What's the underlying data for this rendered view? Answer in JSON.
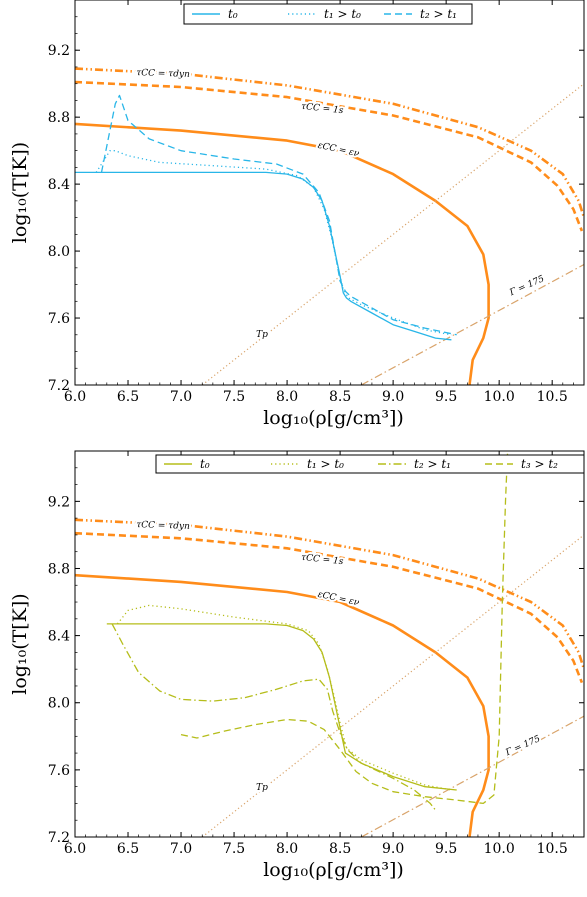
{
  "chart_data": [
    {
      "type": "line",
      "xlabel": "log₁₀(ρ[g/cm³])",
      "ylabel": "log₁₀(T[K])",
      "xlim": [
        6.0,
        10.8
      ],
      "ylim": [
        7.2,
        9.5
      ],
      "xticks": [
        "6.0",
        "6.5",
        "7.0",
        "7.5",
        "8.0",
        "8.5",
        "9.0",
        "9.5",
        "10.0",
        "10.5"
      ],
      "yticks": [
        "7.2",
        "7.6",
        "8.0",
        "8.4",
        "8.8",
        "9.2"
      ],
      "legend": {
        "placement": "top-center",
        "labels": [
          "t₀",
          "t₁ > t₀",
          "t₂ > t₁"
        ]
      },
      "colors": {
        "reference": "#ff8c1a",
        "guide": "#d9a46b",
        "series": "#29b6e8"
      },
      "reference_curves": [
        {
          "name": "τCC = τdyn",
          "style": "dash-dot-dot",
          "x": [
            6.0,
            7.0,
            8.0,
            9.0,
            9.8,
            10.3,
            10.6,
            10.75,
            10.8
          ],
          "y": [
            9.09,
            9.06,
            8.99,
            8.88,
            8.74,
            8.6,
            8.46,
            8.3,
            8.2
          ]
        },
        {
          "name": "τCC = 1s",
          "style": "dashed",
          "x": [
            6.0,
            7.0,
            8.0,
            9.0,
            9.8,
            10.3,
            10.55,
            10.7,
            10.78
          ],
          "y": [
            9.01,
            8.98,
            8.92,
            8.81,
            8.68,
            8.53,
            8.39,
            8.25,
            8.12
          ]
        },
        {
          "name": "εCC = εν",
          "style": "solid",
          "x": [
            6.0,
            7.0,
            8.0,
            8.5,
            9.0,
            9.4,
            9.7,
            9.85,
            9.9,
            9.9,
            9.85,
            9.75,
            9.72
          ],
          "y": [
            8.76,
            8.72,
            8.66,
            8.6,
            8.46,
            8.3,
            8.15,
            7.98,
            7.8,
            7.6,
            7.48,
            7.35,
            7.2
          ]
        },
        {
          "name": "Γ = 175",
          "style": "dash-dot",
          "x": [
            8.7,
            10.8
          ],
          "y": [
            7.2,
            7.92
          ]
        },
        {
          "name": "Tp",
          "style": "dotted",
          "x": [
            7.2,
            10.8
          ],
          "y": [
            7.2,
            9.0
          ]
        }
      ],
      "series": [
        {
          "name": "t₀",
          "style": "solid",
          "x": [
            6.0,
            6.6,
            7.0,
            7.5,
            7.8,
            8.0,
            8.15,
            8.25,
            8.33,
            8.4,
            8.45,
            8.5,
            8.53,
            8.56,
            8.6,
            8.8,
            9.0,
            9.2,
            9.4,
            9.55
          ],
          "y": [
            8.47,
            8.47,
            8.47,
            8.47,
            8.47,
            8.46,
            8.43,
            8.38,
            8.3,
            8.15,
            8.0,
            7.85,
            7.75,
            7.72,
            7.7,
            7.63,
            7.56,
            7.52,
            7.48,
            7.47
          ]
        },
        {
          "name": "t₁ > t₀",
          "style": "dotted",
          "x": [
            6.2,
            6.33,
            6.38,
            6.5,
            6.8,
            7.3,
            7.8,
            8.1,
            8.25,
            8.35,
            8.42,
            8.48,
            8.53,
            8.58,
            8.7,
            9.0,
            9.3,
            9.55
          ],
          "y": [
            8.47,
            8.6,
            8.6,
            8.57,
            8.53,
            8.51,
            8.49,
            8.45,
            8.38,
            8.25,
            8.08,
            7.9,
            7.77,
            7.72,
            7.68,
            7.6,
            7.53,
            7.5
          ]
        },
        {
          "name": "t₂ > t₁",
          "style": "dashed",
          "x": [
            6.25,
            6.38,
            6.42,
            6.5,
            6.7,
            7.0,
            7.5,
            7.9,
            8.15,
            8.3,
            8.4,
            8.45,
            8.5,
            8.55,
            8.6,
            8.8,
            9.0,
            9.3,
            9.6
          ],
          "y": [
            8.47,
            8.88,
            8.93,
            8.78,
            8.67,
            8.6,
            8.55,
            8.52,
            8.46,
            8.35,
            8.18,
            8.0,
            7.82,
            7.76,
            7.73,
            7.66,
            7.59,
            7.54,
            7.5
          ]
        }
      ],
      "annotations": [
        "τCC = τdyn",
        "τCC = 1s",
        "εCC = εν",
        "Γ = 175",
        "Tp"
      ]
    },
    {
      "type": "line",
      "xlabel": "log₁₀(ρ[g/cm³])",
      "ylabel": "log₁₀(T[K])",
      "xlim": [
        6.0,
        10.8
      ],
      "ylim": [
        7.2,
        9.5
      ],
      "xticks": [
        "6.0",
        "6.5",
        "7.0",
        "7.5",
        "8.0",
        "8.5",
        "9.0",
        "9.5",
        "10.0",
        "10.5"
      ],
      "yticks": [
        "7.2",
        "7.6",
        "8.0",
        "8.4",
        "8.8",
        "9.2"
      ],
      "legend": {
        "placement": "top-center",
        "labels": [
          "t₀",
          "t₁ > t₀",
          "t₂ > t₁",
          "t₃ > t₂"
        ]
      },
      "colors": {
        "reference": "#ff8c1a",
        "guide": "#d9a46b",
        "series": "#b5bd1a"
      },
      "reference_curves": [
        {
          "name": "τCC = τdyn",
          "style": "dash-dot-dot",
          "x": [
            6.0,
            7.0,
            8.0,
            9.0,
            9.8,
            10.3,
            10.6,
            10.75,
            10.8
          ],
          "y": [
            9.09,
            9.06,
            8.99,
            8.88,
            8.74,
            8.6,
            8.46,
            8.3,
            8.2
          ]
        },
        {
          "name": "τCC = 1s",
          "style": "dashed",
          "x": [
            6.0,
            7.0,
            8.0,
            9.0,
            9.8,
            10.3,
            10.55,
            10.7,
            10.78
          ],
          "y": [
            9.01,
            8.98,
            8.92,
            8.81,
            8.68,
            8.53,
            8.39,
            8.25,
            8.12
          ]
        },
        {
          "name": "εCC = εν",
          "style": "solid",
          "x": [
            6.0,
            7.0,
            8.0,
            8.5,
            9.0,
            9.4,
            9.7,
            9.85,
            9.9,
            9.9,
            9.85,
            9.75,
            9.72
          ],
          "y": [
            8.76,
            8.72,
            8.66,
            8.6,
            8.46,
            8.3,
            8.15,
            7.98,
            7.8,
            7.6,
            7.48,
            7.35,
            7.2
          ]
        },
        {
          "name": "Γ = 175",
          "style": "dash-dot",
          "x": [
            8.7,
            10.8
          ],
          "y": [
            7.2,
            7.92
          ]
        },
        {
          "name": "Tp",
          "style": "dotted",
          "x": [
            7.2,
            10.8
          ],
          "y": [
            7.2,
            9.0
          ]
        }
      ],
      "series": [
        {
          "name": "t₀",
          "style": "solid",
          "x": [
            6.3,
            6.8,
            7.3,
            7.8,
            8.0,
            8.15,
            8.25,
            8.33,
            8.4,
            8.45,
            8.5,
            8.55,
            8.7,
            9.0,
            9.3,
            9.6
          ],
          "y": [
            8.47,
            8.47,
            8.47,
            8.47,
            8.46,
            8.43,
            8.38,
            8.3,
            8.15,
            8.0,
            7.85,
            7.7,
            7.64,
            7.56,
            7.5,
            7.48
          ]
        },
        {
          "name": "t₁ > t₀",
          "style": "dotted",
          "x": [
            6.4,
            6.5,
            6.7,
            7.0,
            7.5,
            8.0,
            8.2,
            8.3,
            8.38,
            8.44,
            8.5,
            8.56,
            8.7,
            9.0,
            9.3,
            9.55
          ],
          "y": [
            8.47,
            8.55,
            8.58,
            8.56,
            8.51,
            8.47,
            8.43,
            8.35,
            8.2,
            8.05,
            7.88,
            7.73,
            7.66,
            7.58,
            7.51,
            7.48
          ]
        },
        {
          "name": "t₂ > t₁",
          "style": "dash-dot",
          "x": [
            6.35,
            6.45,
            6.6,
            6.8,
            7.0,
            7.3,
            7.6,
            7.9,
            8.15,
            8.3,
            8.38,
            8.43,
            8.5,
            8.57,
            8.7,
            9.0,
            9.2,
            9.35,
            9.4
          ],
          "y": [
            8.47,
            8.35,
            8.18,
            8.07,
            8.02,
            8.01,
            8.03,
            8.08,
            8.13,
            8.14,
            8.08,
            7.95,
            7.82,
            7.72,
            7.64,
            7.55,
            7.48,
            7.4,
            7.36
          ]
        },
        {
          "name": "t₃ > t₂",
          "style": "dashed",
          "x": [
            7.0,
            7.15,
            7.4,
            7.7,
            8.0,
            8.2,
            8.35,
            8.5,
            8.65,
            8.8,
            9.0,
            9.3,
            9.6,
            9.85,
            9.95,
            10.0,
            10.03,
            10.06,
            10.08
          ],
          "y": [
            7.81,
            7.79,
            7.83,
            7.87,
            7.9,
            7.89,
            7.84,
            7.72,
            7.59,
            7.52,
            7.47,
            7.44,
            7.42,
            7.4,
            7.45,
            7.8,
            8.6,
            9.2,
            9.5
          ]
        }
      ],
      "annotations": [
        "τCC = τdyn",
        "τCC = 1s",
        "εCC = εν",
        "Γ = 175",
        "Tp"
      ]
    }
  ]
}
